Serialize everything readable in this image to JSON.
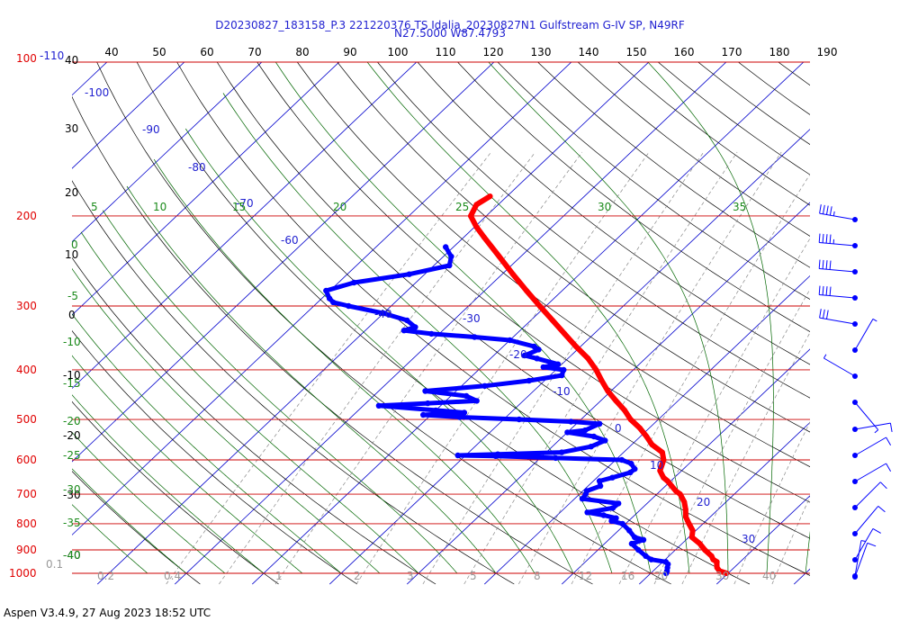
{
  "header": {
    "title_line1": "D20230827_183158_P.3 221220376 TS Idalia_20230827N1 Gulfstream G-IV SP, N49RF",
    "title_line2": "N27.5000 W87.4793"
  },
  "footer": {
    "text": "Aspen V3.4.9, 27 Aug 2023  18:52 UTC"
  },
  "chart_data": {
    "type": "skew-t",
    "title": "D20230827_183158_P.3 221220376 TS Idalia_20230827N1 Gulfstream G-IV SP, N49RF",
    "subtitle": "N27.5000 W87.4793",
    "xlim": [
      40,
      190
    ],
    "ylim": [
      1000,
      100
    ],
    "log_pressure": true,
    "colors": {
      "temperature": "#ff0000",
      "dewpoint": "#0000ff",
      "isobar": "#cc0000",
      "isotherm": "#0000cc",
      "dry_adiabat": "#000000",
      "moist_adiabat": "#006600",
      "mixing_ratio": "#888888",
      "text_blue": "#1f1fd0",
      "text_green": "#1a8a1a"
    },
    "top_axis_labels": [
      "40",
      "50",
      "60",
      "70",
      "80",
      "90",
      "100",
      "110",
      "120",
      "130",
      "140",
      "150",
      "160",
      "170",
      "180",
      "190"
    ],
    "pressure_labels": [
      {
        "p": 100,
        "label": "100"
      },
      {
        "p": 200,
        "label": "200"
      },
      {
        "p": 300,
        "label": "300"
      },
      {
        "p": 400,
        "label": "400"
      },
      {
        "p": 500,
        "label": "500"
      },
      {
        "p": 600,
        "label": "600"
      },
      {
        "p": 700,
        "label": "700"
      },
      {
        "p": 800,
        "label": "800"
      },
      {
        "p": 900,
        "label": "900"
      },
      {
        "p": 1000,
        "label": "1000"
      }
    ],
    "top_left_label": "-110",
    "left_side_labels": [
      "40",
      "30",
      "20",
      "10",
      "0",
      "-10",
      "-20",
      "-30",
      "-40"
    ],
    "isotherm_labels": [
      "-100",
      "-90",
      "-80",
      "-70",
      "-60",
      "-40",
      "-30",
      "-20",
      "-10",
      "0",
      "10",
      "20",
      "30"
    ],
    "moist_adiabat_top_labels": [
      "5",
      "10",
      "15",
      "20",
      "25",
      "30",
      "35"
    ],
    "moist_adiabat_left_labels": [
      "0",
      "-5",
      "-10",
      "-15",
      "-20",
      "-25",
      "-30",
      "-35",
      "-40"
    ],
    "mixing_ratio_labels": [
      "0.1",
      "0.2",
      "0.4",
      "1",
      "2",
      "3",
      "5",
      "8",
      "12",
      "16",
      "20",
      "30",
      "40"
    ],
    "temperature_profile": [
      [
        1000,
        29.8
      ],
      [
        990,
        28.6
      ],
      [
        975,
        27.8
      ],
      [
        960,
        27.3
      ],
      [
        950,
        27.0
      ],
      [
        940,
        26.2
      ],
      [
        925,
        25.5
      ],
      [
        900,
        23.8
      ],
      [
        875,
        22.3
      ],
      [
        850,
        20.4
      ],
      [
        825,
        19.6
      ],
      [
        800,
        18.2
      ],
      [
        775,
        16.8
      ],
      [
        750,
        15.8
      ],
      [
        725,
        14.6
      ],
      [
        700,
        13.0
      ],
      [
        690,
        12.0
      ],
      [
        675,
        10.8
      ],
      [
        660,
        9.6
      ],
      [
        650,
        8.6
      ],
      [
        630,
        7.2
      ],
      [
        600,
        6.2
      ],
      [
        580,
        5.0
      ],
      [
        560,
        2.6
      ],
      [
        540,
        0.8
      ],
      [
        520,
        -1.2
      ],
      [
        500,
        -3.6
      ],
      [
        480,
        -5.6
      ],
      [
        460,
        -8.0
      ],
      [
        440,
        -10.4
      ],
      [
        420,
        -12.6
      ],
      [
        400,
        -14.8
      ],
      [
        380,
        -17.4
      ],
      [
        360,
        -20.6
      ],
      [
        340,
        -23.8
      ],
      [
        320,
        -27.2
      ],
      [
        300,
        -30.8
      ],
      [
        280,
        -34.6
      ],
      [
        260,
        -38.6
      ],
      [
        240,
        -42.8
      ],
      [
        220,
        -47.4
      ],
      [
        210,
        -49.8
      ],
      [
        200,
        -52.0
      ],
      [
        190,
        -52.8
      ],
      [
        183,
        -52.2
      ]
    ],
    "dewpoint_profile": [
      [
        1000,
        22.0
      ],
      [
        990,
        21.8
      ],
      [
        975,
        21.4
      ],
      [
        960,
        21.0
      ],
      [
        950,
        20.4
      ],
      [
        940,
        18.2
      ],
      [
        925,
        17.0
      ],
      [
        900,
        15.2
      ],
      [
        875,
        13.5
      ],
      [
        860,
        14.5
      ],
      [
        850,
        13.0
      ],
      [
        825,
        11.4
      ],
      [
        800,
        9.6
      ],
      [
        790,
        7.8
      ],
      [
        780,
        8.0
      ],
      [
        770,
        6.0
      ],
      [
        760,
        3.5
      ],
      [
        745,
        6.2
      ],
      [
        730,
        6.3
      ],
      [
        715,
        1.0
      ],
      [
        700,
        0.8
      ],
      [
        690,
        0.5
      ],
      [
        675,
        1.6
      ],
      [
        660,
        0.8
      ],
      [
        650,
        2.0
      ],
      [
        635,
        3.6
      ],
      [
        625,
        3.7
      ],
      [
        610,
        2.5
      ],
      [
        600,
        0.8
      ],
      [
        595,
        -8.0
      ],
      [
        590,
        -16.0
      ],
      [
        588,
        -21.0
      ],
      [
        585,
        -16.0
      ],
      [
        580,
        -8.0
      ],
      [
        565,
        -5.0
      ],
      [
        550,
        -4.0
      ],
      [
        540,
        -6.0
      ],
      [
        530,
        -10.0
      ],
      [
        525,
        -8.0
      ],
      [
        510,
        -7.0
      ],
      [
        505,
        -11.0
      ],
      [
        500,
        -18.0
      ],
      [
        495,
        -26.0
      ],
      [
        490,
        -31.0
      ],
      [
        485,
        -26.0
      ],
      [
        480,
        -30.0
      ],
      [
        470,
        -38.0
      ],
      [
        465,
        -32.0
      ],
      [
        460,
        -26.0
      ],
      [
        450,
        -28.0
      ],
      [
        440,
        -34.0
      ],
      [
        430,
        -27.0
      ],
      [
        420,
        -22.0
      ],
      [
        410,
        -18.5
      ],
      [
        400,
        -19.0
      ],
      [
        395,
        -22.0
      ],
      [
        390,
        -20.5
      ],
      [
        380,
        -24.0
      ],
      [
        375,
        -26.0
      ],
      [
        365,
        -25.0
      ],
      [
        360,
        -26.0
      ],
      [
        350,
        -30.0
      ],
      [
        345,
        -35.0
      ],
      [
        340,
        -41.0
      ],
      [
        335,
        -45.0
      ],
      [
        330,
        -44.0
      ],
      [
        320,
        -46.0
      ],
      [
        310,
        -50.0
      ],
      [
        300,
        -55.5
      ],
      [
        295,
        -58.0
      ],
      [
        290,
        -59.0
      ],
      [
        280,
        -60.5
      ],
      [
        270,
        -58.0
      ],
      [
        260,
        -52.0
      ],
      [
        250,
        -48.0
      ],
      [
        240,
        -49.0
      ],
      [
        230,
        -51.0
      ]
    ],
    "wind_barbs": [
      {
        "p": 200,
        "dir": 280,
        "spd": 45
      },
      {
        "p": 230,
        "dir": 275,
        "spd": 45
      },
      {
        "p": 260,
        "dir": 275,
        "spd": 40
      },
      {
        "p": 300,
        "dir": 275,
        "spd": 40
      },
      {
        "p": 340,
        "dir": 280,
        "spd": 30
      },
      {
        "p": 380,
        "dir": 30,
        "spd": 5
      },
      {
        "p": 420,
        "dir": 300,
        "spd": 5
      },
      {
        "p": 470,
        "dir": 140,
        "spd": 5
      },
      {
        "p": 540,
        "dir": 80,
        "spd": 10
      },
      {
        "p": 600,
        "dir": 60,
        "spd": 10
      },
      {
        "p": 680,
        "dir": 60,
        "spd": 10
      },
      {
        "p": 740,
        "dir": 45,
        "spd": 10
      },
      {
        "p": 820,
        "dir": 40,
        "spd": 10
      },
      {
        "p": 900,
        "dir": 30,
        "spd": 10
      },
      {
        "p": 975,
        "dir": 20,
        "spd": 10
      },
      {
        "p": 1000,
        "dir": 10,
        "spd": 5
      }
    ]
  }
}
